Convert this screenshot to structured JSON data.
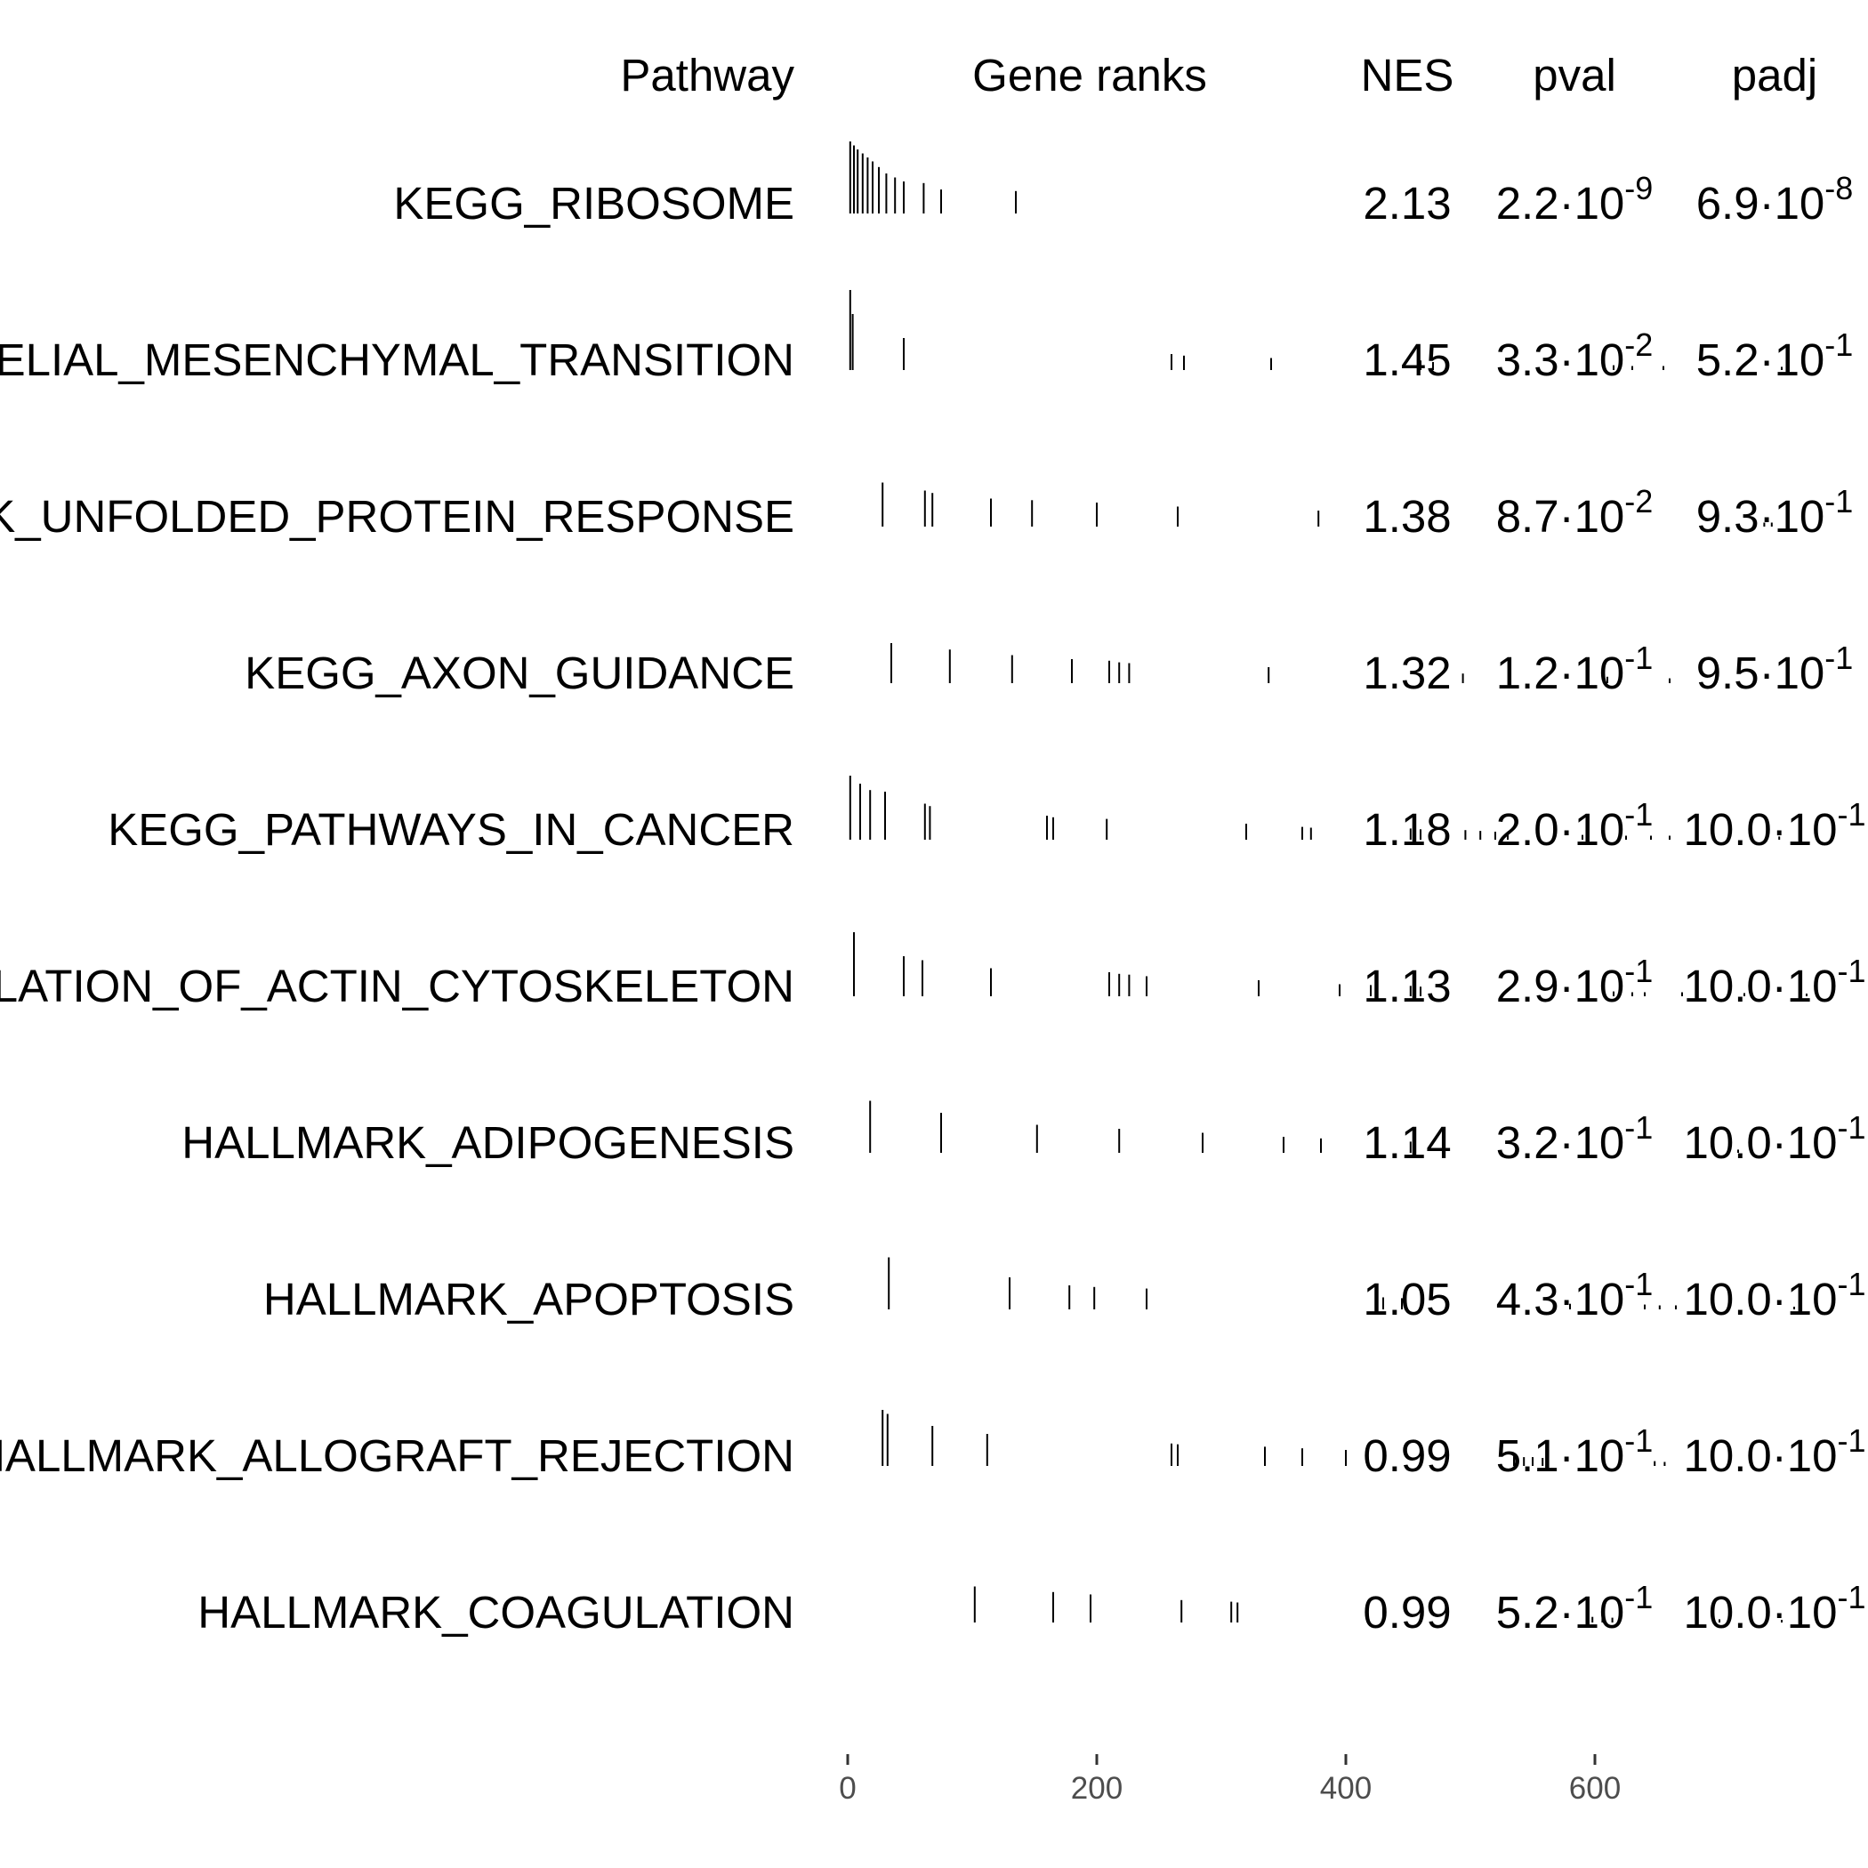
{
  "headers": {
    "pathway": "Pathway",
    "gene_ranks": "Gene ranks",
    "nes": "NES",
    "pval": "pval",
    "padj": "padj"
  },
  "chart_data": {
    "type": "table",
    "x_axis": {
      "ticks": [
        0,
        200,
        400,
        600
      ],
      "range": [
        0,
        750
      ]
    },
    "rows": [
      {
        "pathway": "KEGG_RIBOSOME",
        "nes": "2.13",
        "pval": {
          "m": "2.2",
          "e": "-9"
        },
        "padj": {
          "m": "6.9",
          "e": "-8"
        },
        "ranks": [
          [
            2,
            0.9
          ],
          [
            5,
            0.85
          ],
          [
            8,
            0.8
          ],
          [
            12,
            0.75
          ],
          [
            16,
            0.7
          ],
          [
            20,
            0.65
          ],
          [
            25,
            0.58
          ],
          [
            31,
            0.5
          ],
          [
            38,
            0.45
          ],
          [
            45,
            0.4
          ],
          [
            61,
            0.38
          ],
          [
            75,
            0.3
          ],
          [
            135,
            0.28
          ]
        ]
      },
      {
        "pathway": "HALLMARK_EPITHELIAL_MESENCHYMAL_TRANSITION",
        "nes": "1.45",
        "pval": {
          "m": "3.3",
          "e": "-2"
        },
        "padj": {
          "m": "5.2",
          "e": "-1"
        },
        "ranks": [
          [
            2,
            1.0
          ],
          [
            4,
            0.7
          ],
          [
            45,
            0.4
          ],
          [
            260,
            0.2
          ],
          [
            270,
            0.18
          ],
          [
            340,
            0.15
          ],
          [
            460,
            0.12
          ],
          [
            470,
            0.1
          ],
          [
            615,
            0.06
          ],
          [
            630,
            0.05
          ],
          [
            655,
            0.05
          ],
          [
            750,
            0.04
          ]
        ]
      },
      {
        "pathway": "HALLMARK_UNFOLDED_PROTEIN_RESPONSE",
        "nes": "1.38",
        "pval": {
          "m": "8.7",
          "e": "-2"
        },
        "padj": {
          "m": "9.3",
          "e": "-1"
        },
        "ranks": [
          [
            28,
            0.55
          ],
          [
            62,
            0.45
          ],
          [
            68,
            0.42
          ],
          [
            115,
            0.35
          ],
          [
            148,
            0.33
          ],
          [
            200,
            0.3
          ],
          [
            265,
            0.25
          ],
          [
            378,
            0.2
          ],
          [
            736,
            0.05
          ],
          [
            742,
            0.05
          ]
        ]
      },
      {
        "pathway": "KEGG_AXON_GUIDANCE",
        "nes": "1.32",
        "pval": {
          "m": "1.2",
          "e": "-1"
        },
        "padj": {
          "m": "9.5",
          "e": "-1"
        },
        "ranks": [
          [
            35,
            0.5
          ],
          [
            82,
            0.42
          ],
          [
            132,
            0.35
          ],
          [
            180,
            0.3
          ],
          [
            210,
            0.28
          ],
          [
            218,
            0.26
          ],
          [
            226,
            0.25
          ],
          [
            338,
            0.2
          ],
          [
            494,
            0.12
          ],
          [
            610,
            0.08
          ],
          [
            660,
            0.06
          ]
        ]
      },
      {
        "pathway": "KEGG_PATHWAYS_IN_CANCER",
        "nes": "1.18",
        "pval": {
          "m": "2.0",
          "e": "-1"
        },
        "padj": {
          "m": "10.0",
          "e": "-1"
        },
        "ranks": [
          [
            2,
            0.8
          ],
          [
            10,
            0.7
          ],
          [
            18,
            0.62
          ],
          [
            30,
            0.6
          ],
          [
            62,
            0.45
          ],
          [
            66,
            0.42
          ],
          [
            160,
            0.3
          ],
          [
            165,
            0.28
          ],
          [
            208,
            0.26
          ],
          [
            320,
            0.2
          ],
          [
            365,
            0.16
          ],
          [
            372,
            0.15
          ],
          [
            452,
            0.14
          ],
          [
            460,
            0.13
          ],
          [
            496,
            0.12
          ],
          [
            508,
            0.11
          ],
          [
            520,
            0.1
          ],
          [
            530,
            0.1
          ],
          [
            590,
            0.06
          ],
          [
            625,
            0.05
          ],
          [
            645,
            0.05
          ],
          [
            660,
            0.05
          ],
          [
            748,
            0.04
          ]
        ]
      },
      {
        "pathway": "KEGG_REGULATION_OF_ACTIN_CYTOSKELETON",
        "nes": "1.13",
        "pval": {
          "m": "2.9",
          "e": "-1"
        },
        "padj": {
          "m": "10.0",
          "e": "-1"
        },
        "ranks": [
          [
            5,
            0.8
          ],
          [
            45,
            0.5
          ],
          [
            60,
            0.45
          ],
          [
            115,
            0.35
          ],
          [
            210,
            0.3
          ],
          [
            218,
            0.28
          ],
          [
            226,
            0.27
          ],
          [
            240,
            0.25
          ],
          [
            330,
            0.2
          ],
          [
            395,
            0.15
          ],
          [
            420,
            0.14
          ],
          [
            452,
            0.13
          ],
          [
            460,
            0.12
          ],
          [
            615,
            0.06
          ],
          [
            630,
            0.05
          ],
          [
            640,
            0.05
          ],
          [
            670,
            0.05
          ],
          [
            720,
            0.04
          ],
          [
            770,
            0.03
          ]
        ]
      },
      {
        "pathway": "HALLMARK_ADIPOGENESIS",
        "nes": "1.14",
        "pval": {
          "m": "3.2",
          "e": "-1"
        },
        "padj": {
          "m": "10.0",
          "e": "-1"
        },
        "ranks": [
          [
            18,
            0.65
          ],
          [
            75,
            0.5
          ],
          [
            152,
            0.35
          ],
          [
            218,
            0.3
          ],
          [
            285,
            0.25
          ],
          [
            350,
            0.2
          ],
          [
            380,
            0.18
          ],
          [
            452,
            0.14
          ],
          [
            715,
            0.04
          ]
        ]
      },
      {
        "pathway": "HALLMARK_APOPTOSIS",
        "nes": "1.05",
        "pval": {
          "m": "4.3",
          "e": "-1"
        },
        "padj": {
          "m": "10.0",
          "e": "-1"
        },
        "ranks": [
          [
            33,
            0.65
          ],
          [
            130,
            0.4
          ],
          [
            178,
            0.3
          ],
          [
            198,
            0.28
          ],
          [
            240,
            0.26
          ],
          [
            430,
            0.15
          ],
          [
            445,
            0.14
          ],
          [
            580,
            0.07
          ],
          [
            640,
            0.06
          ],
          [
            652,
            0.05
          ],
          [
            665,
            0.05
          ],
          [
            725,
            0.04
          ],
          [
            760,
            0.03
          ]
        ]
      },
      {
        "pathway": "HALLMARK_ALLOGRAFT_REJECTION",
        "nes": "0.99",
        "pval": {
          "m": "5.1",
          "e": "-1"
        },
        "padj": {
          "m": "10.0",
          "e": "-1"
        },
        "ranks": [
          [
            28,
            0.7
          ],
          [
            32,
            0.65
          ],
          [
            68,
            0.5
          ],
          [
            112,
            0.4
          ],
          [
            260,
            0.28
          ],
          [
            265,
            0.27
          ],
          [
            335,
            0.24
          ],
          [
            365,
            0.22
          ],
          [
            400,
            0.2
          ],
          [
            535,
            0.12
          ],
          [
            543,
            0.11
          ],
          [
            550,
            0.11
          ],
          [
            558,
            0.1
          ],
          [
            648,
            0.06
          ],
          [
            656,
            0.05
          ],
          [
            790,
            0.03
          ]
        ]
      },
      {
        "pathway": "HALLMARK_COAGULATION",
        "nes": "0.99",
        "pval": {
          "m": "5.2",
          "e": "-1"
        },
        "padj": {
          "m": "10.0",
          "e": "-1"
        },
        "ranks": [
          [
            102,
            0.45
          ],
          [
            165,
            0.38
          ],
          [
            195,
            0.35
          ],
          [
            268,
            0.28
          ],
          [
            308,
            0.26
          ],
          [
            313,
            0.25
          ],
          [
            430,
            0.18
          ],
          [
            598,
            0.07
          ],
          [
            606,
            0.06
          ],
          [
            614,
            0.06
          ],
          [
            700,
            0.04
          ],
          [
            750,
            0.03
          ]
        ]
      }
    ]
  }
}
